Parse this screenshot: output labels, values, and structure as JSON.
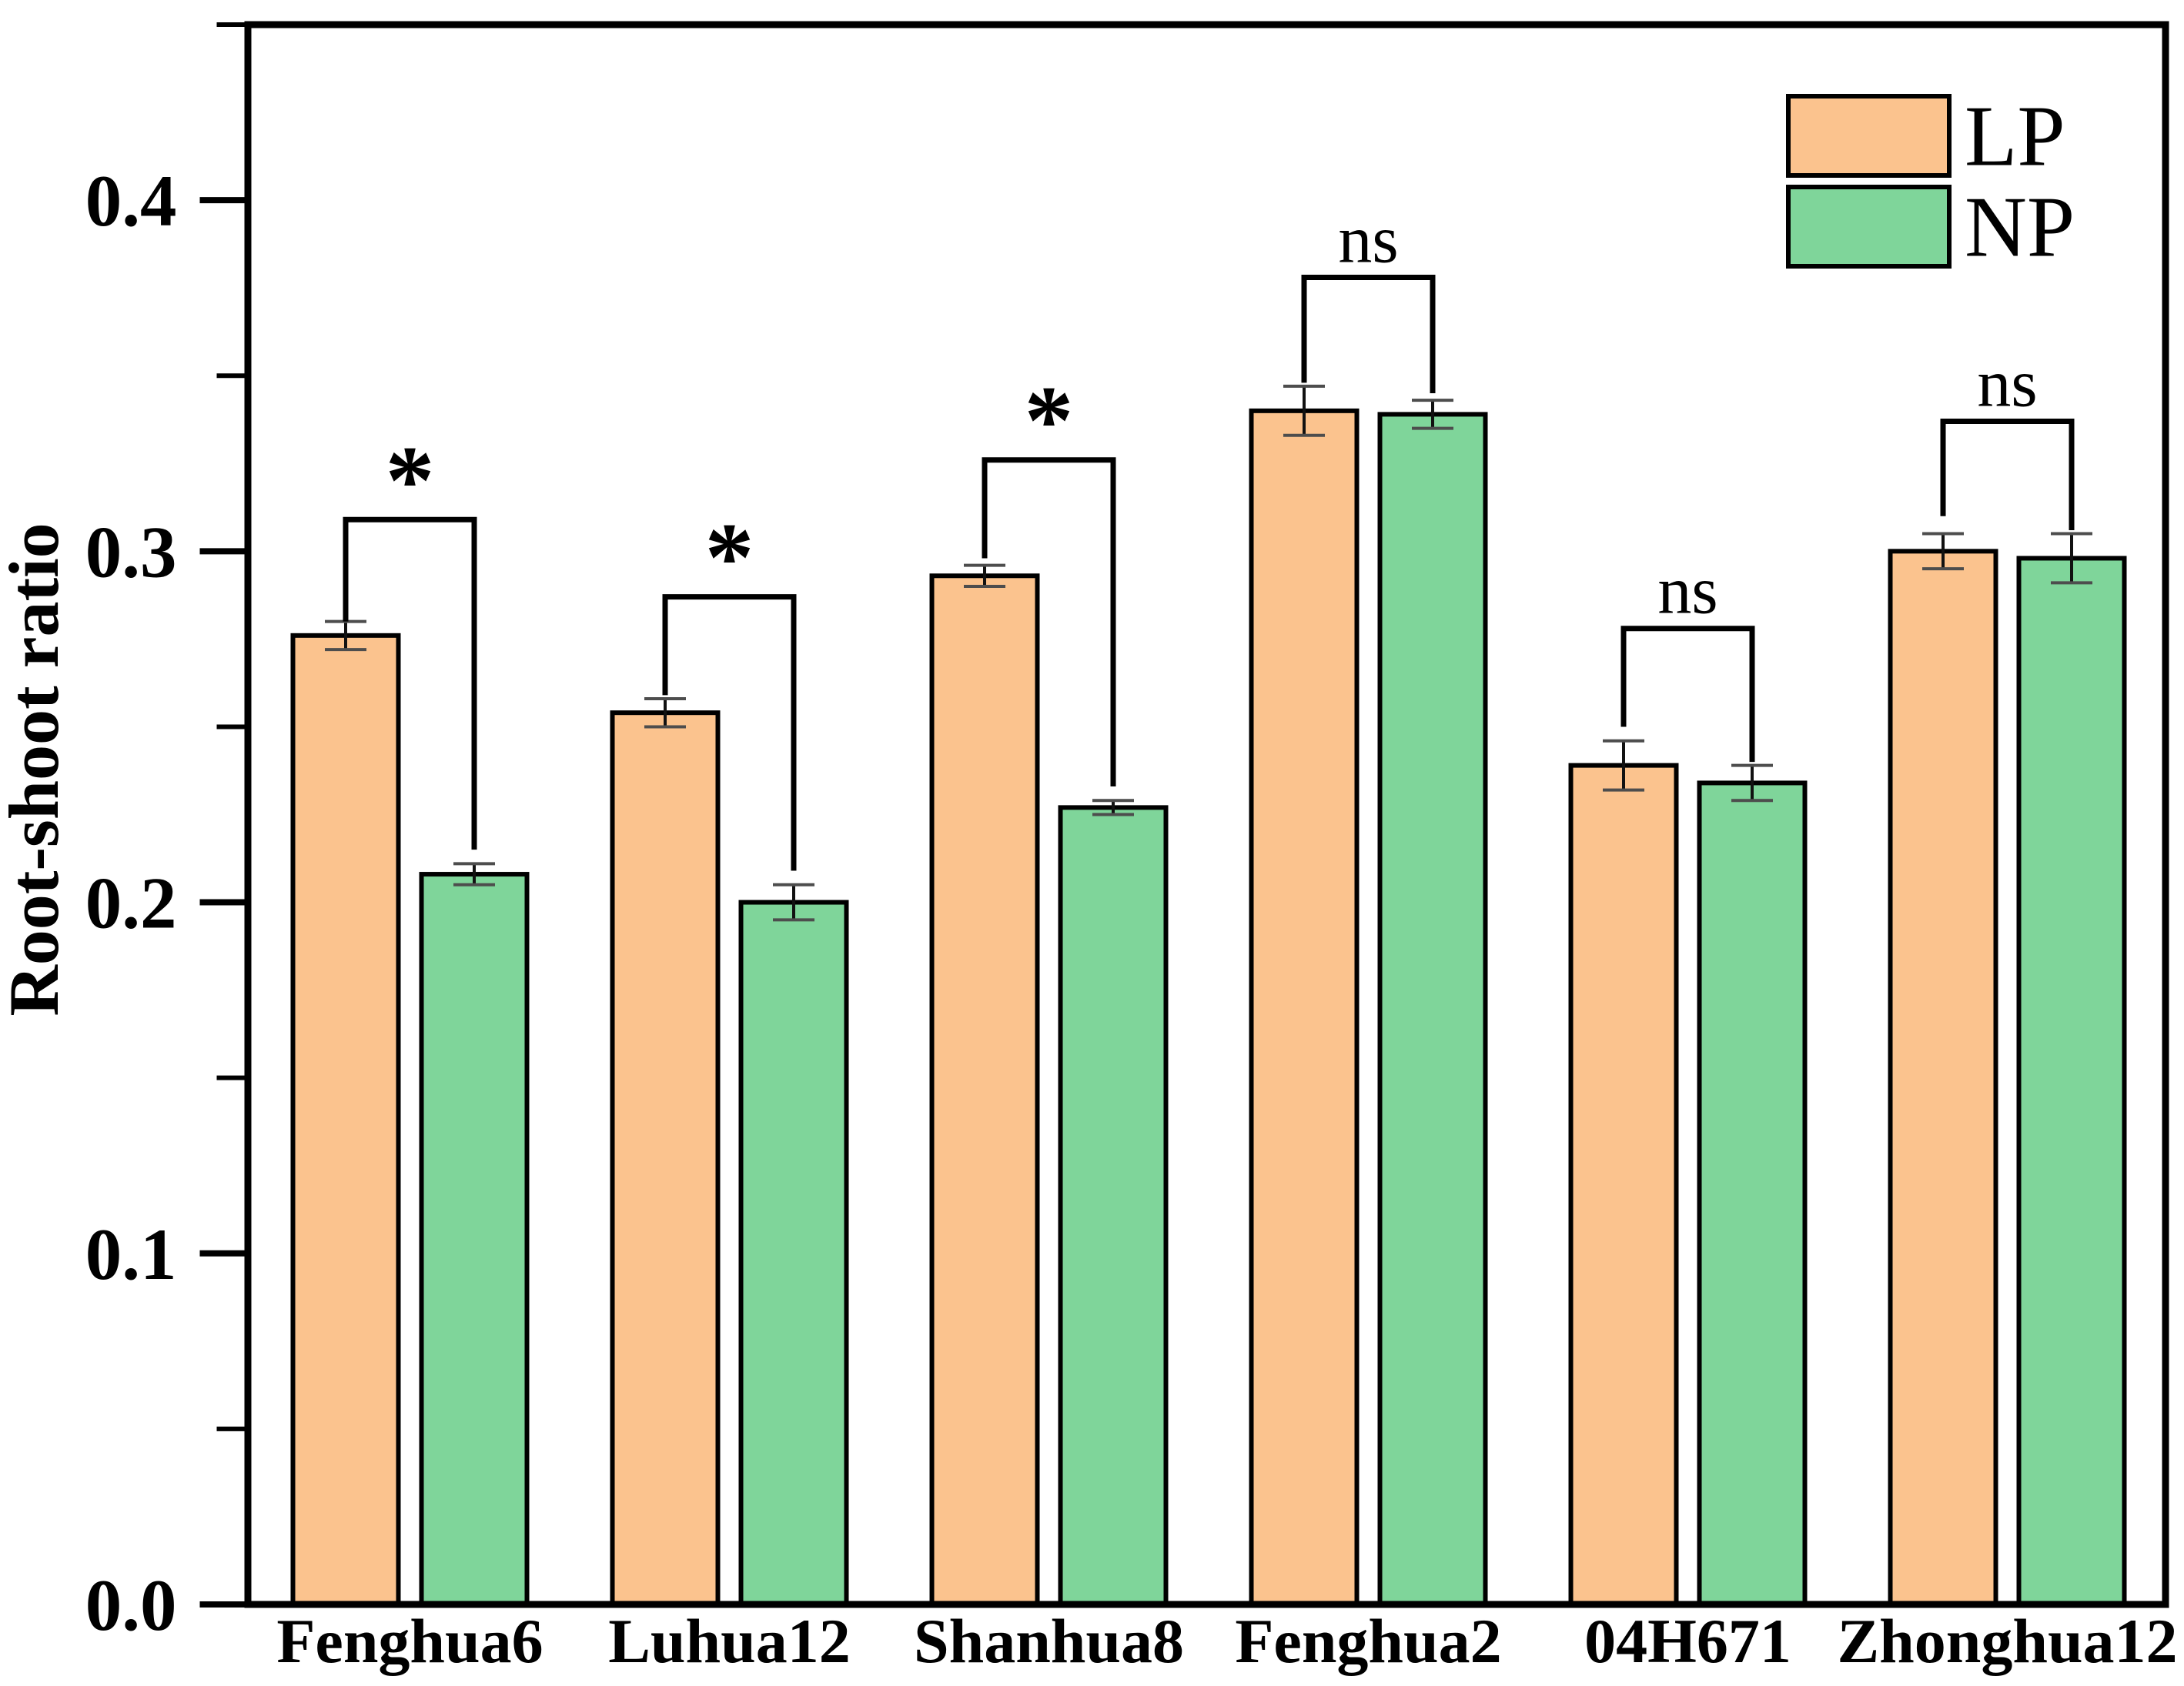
{
  "figure": {
    "background": "#ffffff",
    "frame_color": "#000000"
  },
  "chart_data": {
    "type": "bar",
    "title": "",
    "xlabel": "",
    "ylabel": "Root-shoot ratio",
    "ylim": [
      0,
      0.45
    ],
    "grid": false,
    "legend_position": "top-right",
    "yticks": [
      {
        "value": 0.0,
        "label": "0.0"
      },
      {
        "value": 0.1,
        "label": "0.1"
      },
      {
        "value": 0.2,
        "label": "0.2"
      },
      {
        "value": 0.3,
        "label": "0.3"
      },
      {
        "value": 0.4,
        "label": "0.4"
      }
    ],
    "minor_ticks": [
      0.05,
      0.15,
      0.25,
      0.35,
      0.45
    ],
    "categories": [
      "Fenghua6",
      "Luhua12",
      "Shanhua8",
      "Fenghua2",
      "04H671",
      "Zhonghua12"
    ],
    "series": [
      {
        "name": "LP",
        "color": "#FBC38E",
        "values": [
          0.276,
          0.254,
          0.293,
          0.34,
          0.239,
          0.3
        ],
        "errors": [
          0.004,
          0.004,
          0.003,
          0.007,
          0.007,
          0.005
        ]
      },
      {
        "name": "NP",
        "color": "#7FD59A",
        "values": [
          0.208,
          0.2,
          0.227,
          0.339,
          0.234,
          0.298
        ],
        "errors": [
          0.003,
          0.005,
          0.002,
          0.004,
          0.005,
          0.007
        ]
      }
    ],
    "significance": [
      {
        "category": "Fenghua6",
        "label": "*",
        "bracket_y": 0.309,
        "lp_arm_bottom": 0.28,
        "np_arm_bottom": 0.215
      },
      {
        "category": "Luhua12",
        "label": "*",
        "bracket_y": 0.287,
        "lp_arm_bottom": 0.259,
        "np_arm_bottom": 0.209
      },
      {
        "category": "Shanhua8",
        "label": "*",
        "bracket_y": 0.326,
        "lp_arm_bottom": 0.298,
        "np_arm_bottom": 0.233
      },
      {
        "category": "Fenghua2",
        "label": "ns",
        "bracket_y": 0.378,
        "lp_arm_bottom": 0.348,
        "np_arm_bottom": 0.345
      },
      {
        "category": "04H671",
        "label": "ns",
        "bracket_y": 0.278,
        "lp_arm_bottom": 0.25,
        "np_arm_bottom": 0.24
      },
      {
        "category": "Zhonghua12",
        "label": "ns",
        "bracket_y": 0.337,
        "lp_arm_bottom": 0.31,
        "np_arm_bottom": 0.306
      }
    ],
    "style_colors": {
      "axis": "#000000",
      "bar_border": "#000000",
      "whisker": "#111111",
      "error_cap": "#4d4d4d",
      "bracket": "#000000",
      "text": "#000000"
    }
  }
}
